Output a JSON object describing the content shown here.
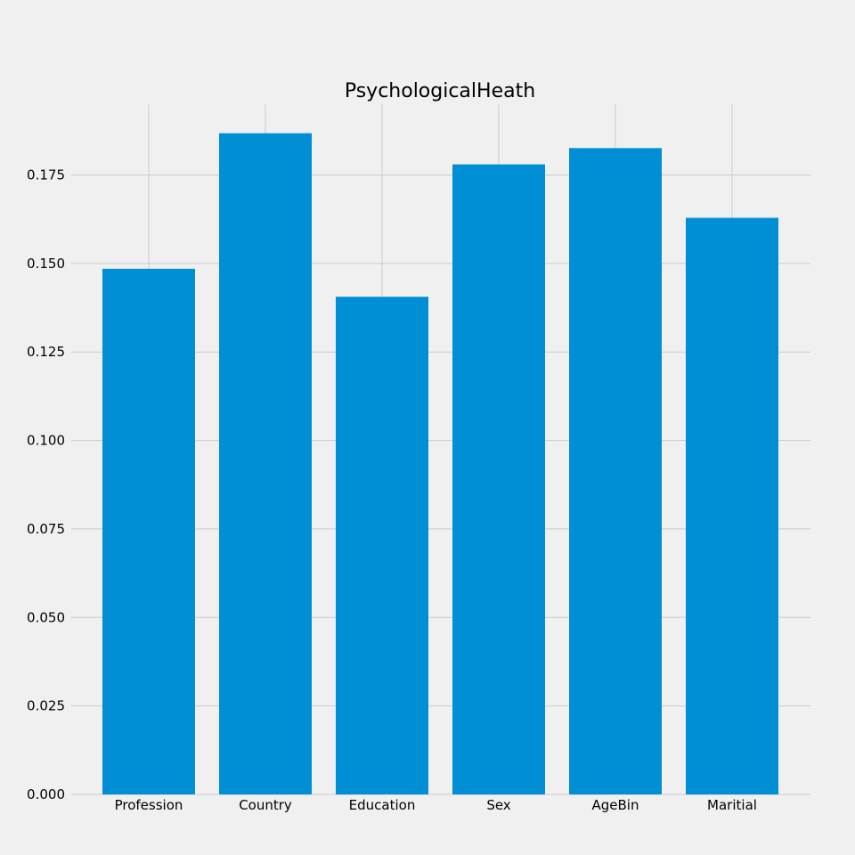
{
  "chart_data": {
    "type": "bar",
    "title": "PsychologicalHeath",
    "xlabel": "",
    "ylabel": "",
    "categories": [
      "Profession",
      "Country",
      "Education",
      "Sex",
      "AgeBin",
      "Maritial"
    ],
    "values": [
      0.1485,
      0.1868,
      0.1406,
      0.178,
      0.1826,
      0.1629
    ],
    "ylim": [
      0,
      0.195
    ],
    "yticks": [
      0.0,
      0.025,
      0.05,
      0.075,
      0.1,
      0.125,
      0.15,
      0.175
    ],
    "ytick_labels": [
      "0.000",
      "0.025",
      "0.050",
      "0.075",
      "0.100",
      "0.125",
      "0.150",
      "0.175"
    ],
    "grid": true,
    "legend": "none",
    "bar_color": "#008fd5",
    "background_color": "#f0f0f0",
    "grid_color": "#cbcbcb"
  }
}
